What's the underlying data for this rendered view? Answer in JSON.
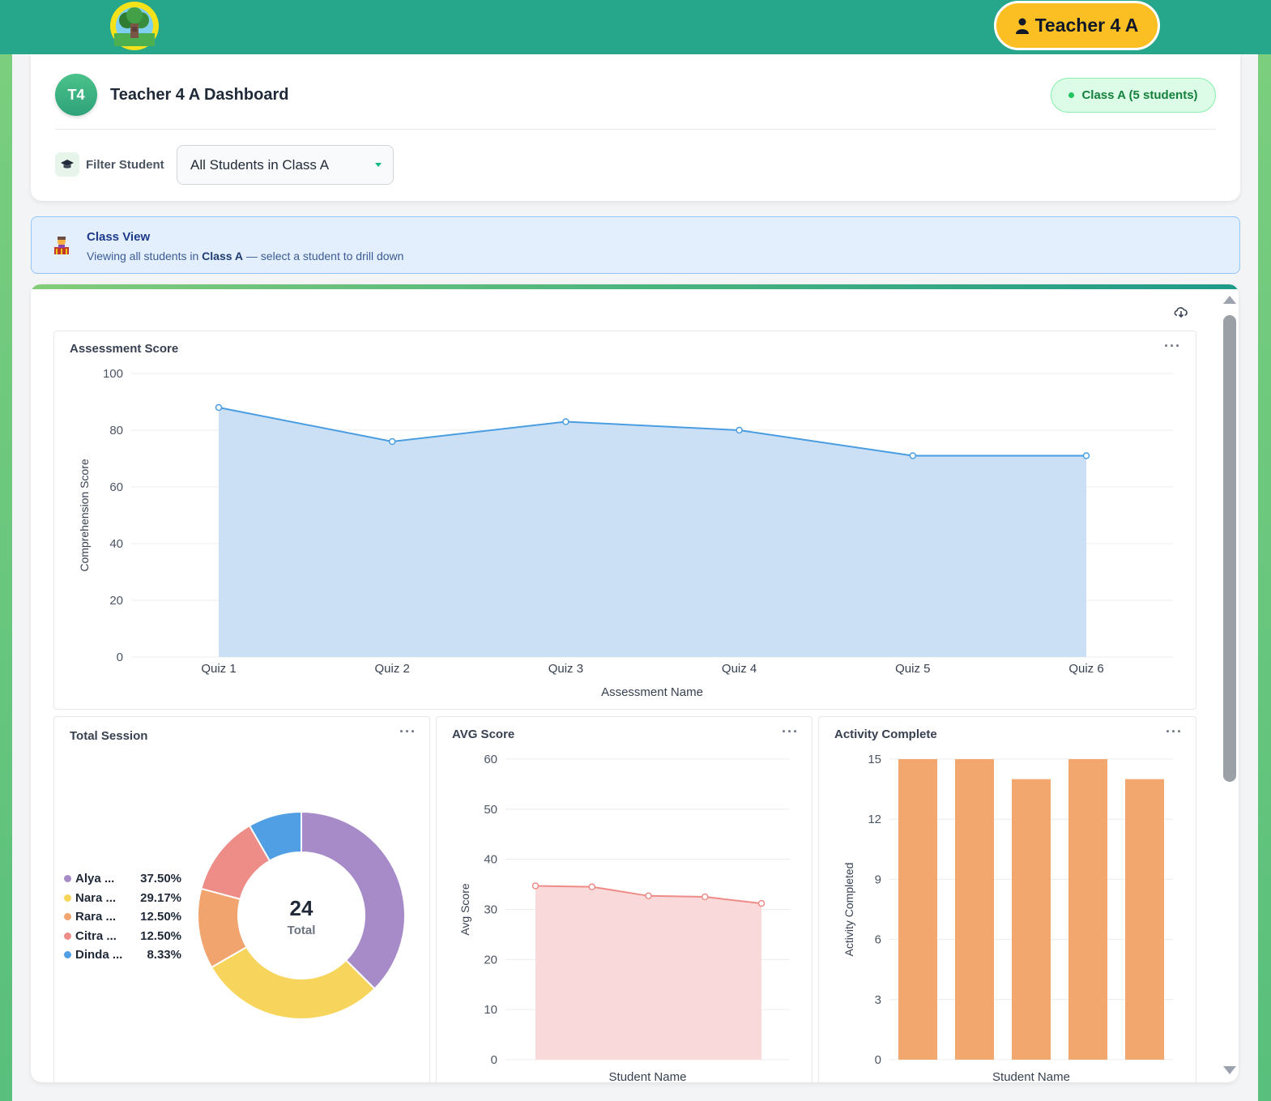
{
  "header": {
    "user_label": "Teacher 4 A",
    "icons": {
      "logo": "tree-logo-icon",
      "user": "user-icon"
    },
    "colors": {
      "topbar": "#26a68b",
      "user_button": "#fbbf24"
    }
  },
  "dashboard": {
    "avatar_initials": "T4",
    "title": "Teacher 4 A Dashboard",
    "class_badge": "Class A (5 students)",
    "filter_label": "Filter Student",
    "filter_selected": "All Students in Class A",
    "icons": {
      "filter": "graduation-cap-icon",
      "select": "chevron-down-icon"
    }
  },
  "class_view": {
    "title": "Class View",
    "desc_prefix": "Viewing all students in ",
    "desc_class": "Class A",
    "desc_suffix": " — select a student to drill down",
    "icon": "teacher-icon"
  },
  "panel": {
    "icons": {
      "download": "cloud-download-icon",
      "more": "more-dots-icon"
    },
    "more_label": "···"
  },
  "charts": {
    "assessment": {
      "title": "Assessment Score"
    },
    "session": {
      "title": "Total Session"
    },
    "avg": {
      "title": "AVG Score"
    },
    "activity": {
      "title": "Activity Complete"
    }
  },
  "chart_data": [
    {
      "type": "area",
      "title": "Assessment Score",
      "xlabel": "Assessment Name",
      "ylabel": "Comprehension Score",
      "categories": [
        "Quiz 1",
        "Quiz 2",
        "Quiz 3",
        "Quiz 4",
        "Quiz 5",
        "Quiz 6"
      ],
      "values": [
        88,
        76,
        83,
        80,
        71,
        71
      ],
      "ylim": [
        0,
        100
      ],
      "yticks": [
        0,
        20,
        40,
        60,
        80,
        100
      ],
      "grid": true,
      "color": "#4a9de0",
      "fill": "#cce0f5"
    },
    {
      "type": "pie",
      "title": "Total Session",
      "center_value": "24",
      "center_label": "Total",
      "legend_position": "left",
      "slices": [
        {
          "label": "Alya ...",
          "percent_label": "37.50%",
          "value": 9,
          "color": "#a78bc9"
        },
        {
          "label": "Nara ...",
          "percent_label": "29.17%",
          "value": 7,
          "color": "#f7d55c"
        },
        {
          "label": "Rara ...",
          "percent_label": "12.50%",
          "value": 3,
          "color": "#f2a46e"
        },
        {
          "label": "Citra ...",
          "percent_label": "12.50%",
          "value": 3,
          "color": "#ee8c88"
        },
        {
          "label": "Dinda ...",
          "percent_label": "8.33%",
          "value": 2,
          "color": "#509ee3"
        }
      ]
    },
    {
      "type": "area",
      "title": "AVG Score",
      "xlabel": "Student Name",
      "ylabel": "Avg Score",
      "values": [
        34.7,
        34.5,
        32.7,
        32.5,
        31.2
      ],
      "ylim": [
        0,
        60
      ],
      "yticks": [
        0,
        10,
        20,
        30,
        40,
        50,
        60
      ],
      "grid": true,
      "color": "#ee8c88",
      "fill": "#f9d9da"
    },
    {
      "type": "bar",
      "title": "Activity Complete",
      "xlabel": "Student Name",
      "ylabel": "Activity Completed",
      "values": [
        15,
        15,
        14,
        15,
        14
      ],
      "ylim": [
        0,
        15
      ],
      "yticks": [
        0,
        3,
        6,
        9,
        12,
        15
      ],
      "grid": true,
      "color": "#f2a76e"
    }
  ]
}
